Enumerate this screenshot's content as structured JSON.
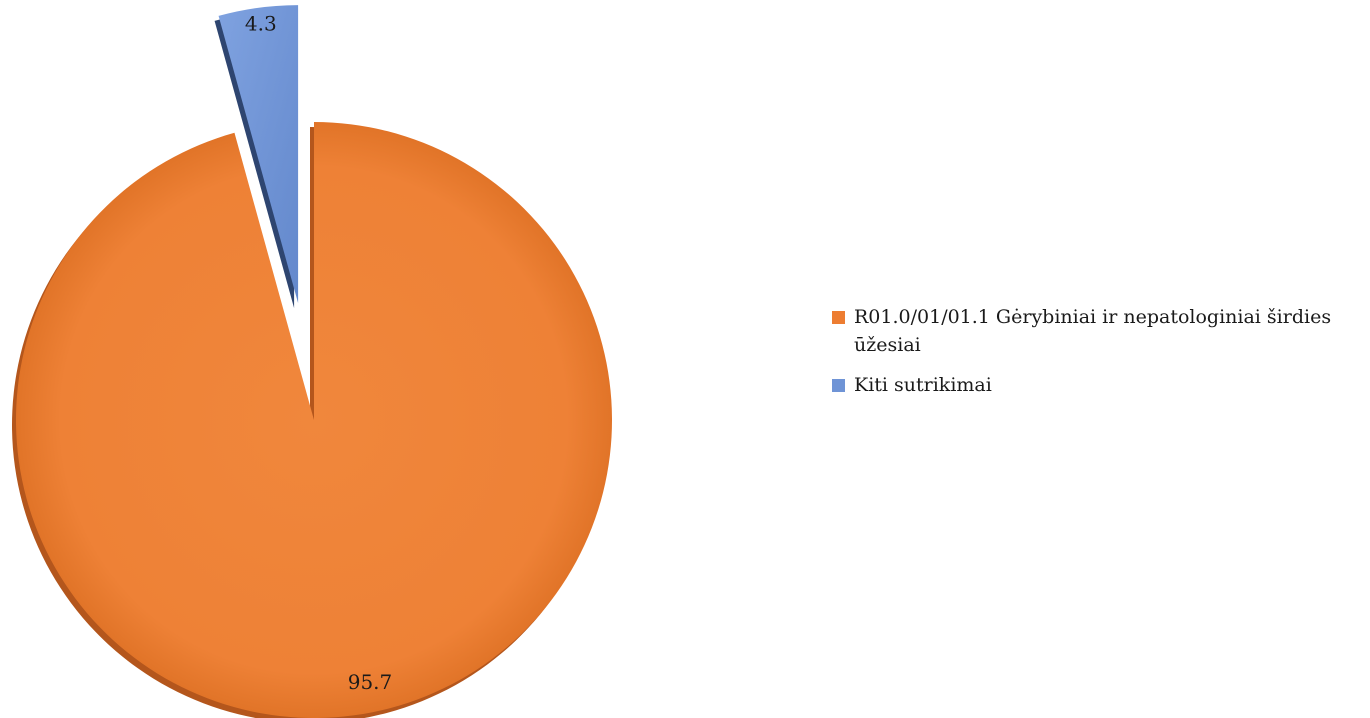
{
  "chart_data": {
    "type": "pie",
    "title": "",
    "categories": [
      "R01.0/01/01.1 Gėrybiniai ir nepatologiniai širdies ūžesiai",
      "Kiti sutrikimai"
    ],
    "values": [
      95.7,
      4.3
    ],
    "value_labels": [
      "95.7",
      "4.3"
    ],
    "colors": [
      "#ED7D31",
      "#6F94D6"
    ],
    "exploded": [
      false,
      true
    ],
    "legend_position": "right"
  }
}
